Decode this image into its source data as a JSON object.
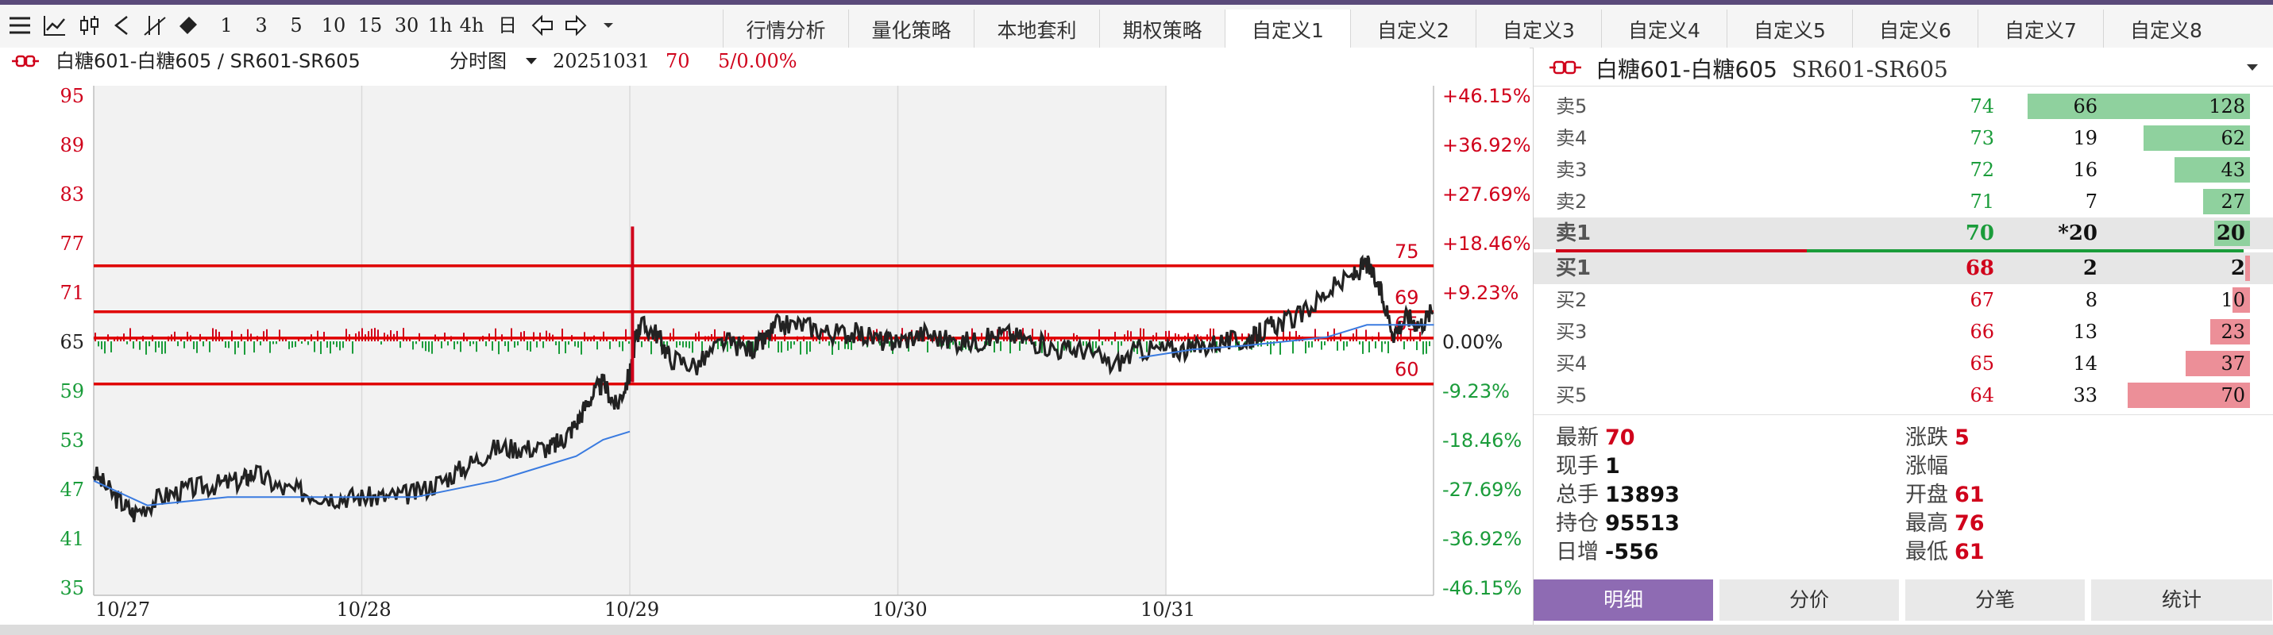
{
  "toolbar": {
    "periods": [
      "1",
      "3",
      "5",
      "10",
      "15",
      "30",
      "1h",
      "4h",
      "日"
    ],
    "tabs": [
      "行情分析",
      "量化策略",
      "本地套利",
      "期权策略",
      "自定义1",
      "自定义2",
      "自定义3",
      "自定义4",
      "自定义5",
      "自定义6",
      "自定义7",
      "自定义8"
    ],
    "active_tab": "自定义1"
  },
  "chart_header": {
    "instrument": "白糖601-白糖605 / SR601-SR605",
    "view": "分时图",
    "date": "20251031",
    "last": "70",
    "change": "5/0.00%"
  },
  "chart_data": {
    "type": "line",
    "x_ticks": [
      "10/27",
      "10/28",
      "10/29",
      "10/30",
      "10/31"
    ],
    "y_ticks": [
      95,
      89,
      83,
      77,
      71,
      65,
      59,
      53,
      47,
      41,
      35
    ],
    "pct_ticks": [
      "+46.15%",
      "+36.92%",
      "+27.69%",
      "+18.46%",
      "+9.23%",
      "0.00%",
      "-9.23%",
      "-18.46%",
      "-27.69%",
      "-36.92%",
      "-46.15%"
    ],
    "ylim": [
      35,
      95
    ],
    "baseline": 65,
    "levels": [
      {
        "label": "75",
        "value": 74.2
      },
      {
        "label": "69",
        "value": 68.6
      },
      {
        "label": "65",
        "value": 65.4
      },
      {
        "label": "60",
        "value": 59.8
      }
    ],
    "spread_series": [
      [
        0,
        49
      ],
      [
        0.08,
        46
      ],
      [
        0.15,
        44
      ],
      [
        0.25,
        46
      ],
      [
        0.35,
        47
      ],
      [
        0.45,
        47.5
      ],
      [
        0.55,
        48
      ],
      [
        0.6,
        49
      ],
      [
        0.7,
        47
      ],
      [
        0.8,
        46.5
      ],
      [
        0.9,
        46
      ],
      [
        1.0,
        46
      ],
      [
        1.1,
        46
      ],
      [
        1.2,
        46.5
      ],
      [
        1.3,
        48
      ],
      [
        1.4,
        50
      ],
      [
        1.5,
        52
      ],
      [
        1.6,
        52
      ],
      [
        1.7,
        52
      ],
      [
        1.75,
        53
      ],
      [
        1.8,
        55
      ],
      [
        1.85,
        58
      ],
      [
        1.9,
        60
      ],
      [
        1.95,
        57
      ],
      [
        2.0,
        61
      ],
      [
        2.02,
        65
      ],
      [
        2.04,
        67
      ],
      [
        2.1,
        66
      ],
      [
        2.15,
        63
      ],
      [
        2.25,
        62
      ],
      [
        2.35,
        65
      ],
      [
        2.45,
        64
      ],
      [
        2.5,
        65
      ],
      [
        2.55,
        67
      ],
      [
        2.65,
        67
      ],
      [
        2.75,
        66
      ],
      [
        2.85,
        66
      ],
      [
        2.95,
        65
      ],
      [
        3.0,
        65
      ],
      [
        3.1,
        66
      ],
      [
        3.2,
        65
      ],
      [
        3.3,
        65
      ],
      [
        3.4,
        66
      ],
      [
        3.5,
        65
      ],
      [
        3.6,
        64
      ],
      [
        3.7,
        64
      ],
      [
        3.8,
        62
      ],
      [
        3.9,
        64
      ],
      [
        4.0,
        64
      ],
      [
        4.1,
        64
      ],
      [
        4.2,
        65
      ],
      [
        4.3,
        65
      ],
      [
        4.35,
        66
      ],
      [
        4.4,
        67
      ],
      [
        4.5,
        68
      ],
      [
        4.6,
        71
      ],
      [
        4.7,
        73
      ],
      [
        4.75,
        74.5
      ],
      [
        4.8,
        71
      ],
      [
        4.85,
        66
      ],
      [
        4.9,
        68
      ],
      [
        4.95,
        67
      ],
      [
        5.0,
        69
      ]
    ],
    "spike": [
      [
        2.01,
        60
      ],
      [
        2.01,
        79
      ]
    ],
    "avg_series": [
      [
        0,
        48
      ],
      [
        0.2,
        45
      ],
      [
        0.5,
        46
      ],
      [
        1.0,
        46
      ],
      [
        1.2,
        46
      ],
      [
        1.5,
        48
      ],
      [
        1.7,
        50
      ],
      [
        1.8,
        51
      ],
      [
        1.9,
        53
      ],
      [
        2.0,
        54
      ],
      [
        2.3,
        null
      ],
      [
        3.9,
        63
      ],
      [
        4.1,
        64
      ],
      [
        4.3,
        64.5
      ],
      [
        4.6,
        65.5
      ],
      [
        4.75,
        67
      ],
      [
        4.9,
        67
      ],
      [
        5.0,
        67
      ]
    ],
    "grid": true
  },
  "panel": {
    "title": "白糖601-白糖605",
    "code": "SR601-SR605",
    "asks": [
      {
        "label": "卖5",
        "price": "74",
        "vol": "66",
        "cum": "128",
        "frac": 1.0
      },
      {
        "label": "卖4",
        "price": "73",
        "vol": "19",
        "cum": "62",
        "frac": 0.48
      },
      {
        "label": "卖3",
        "price": "72",
        "vol": "16",
        "cum": "43",
        "frac": 0.34
      },
      {
        "label": "卖2",
        "price": "71",
        "vol": "7",
        "cum": "27",
        "frac": 0.21
      },
      {
        "label": "卖1",
        "price": "70",
        "vol": "*20",
        "cum": "20",
        "frac": 0.16
      }
    ],
    "bids": [
      {
        "label": "买1",
        "price": "68",
        "vol": "2",
        "cum": "2",
        "frac": 0.02
      },
      {
        "label": "买2",
        "price": "67",
        "vol": "8",
        "cum": "10",
        "frac": 0.08
      },
      {
        "label": "买3",
        "price": "66",
        "vol": "13",
        "cum": "23",
        "frac": 0.18
      },
      {
        "label": "买4",
        "price": "65",
        "vol": "14",
        "cum": "37",
        "frac": 0.29
      },
      {
        "label": "买5",
        "price": "64",
        "vol": "33",
        "cum": "70",
        "frac": 0.55
      }
    ],
    "stats_left": [
      {
        "k": "最新",
        "v": "70",
        "color": "#d0021b"
      },
      {
        "k": "现手",
        "v": "1",
        "color": "#111111"
      },
      {
        "k": "总手",
        "v": "13893",
        "color": "#111111"
      },
      {
        "k": "持仓",
        "v": "95513",
        "color": "#111111"
      },
      {
        "k": "日增",
        "v": "-556",
        "color": "#111111"
      }
    ],
    "stats_right": [
      {
        "k": "涨跌",
        "v": "5",
        "color": "#d0021b"
      },
      {
        "k": "涨幅",
        "v": "",
        "color": "#d0021b"
      },
      {
        "k": "开盘",
        "v": "61",
        "color": "#d0021b"
      },
      {
        "k": "最高",
        "v": "76",
        "color": "#d0021b"
      },
      {
        "k": "最低",
        "v": "61",
        "color": "#d0021b"
      }
    ],
    "bottom_tabs": [
      "明细",
      "分价",
      "分笔",
      "统计"
    ],
    "active_bottom_tab": "明细"
  },
  "colors": {
    "up": "#d0021b",
    "down": "#1a9c3a",
    "accent": "#8e6bb3"
  }
}
